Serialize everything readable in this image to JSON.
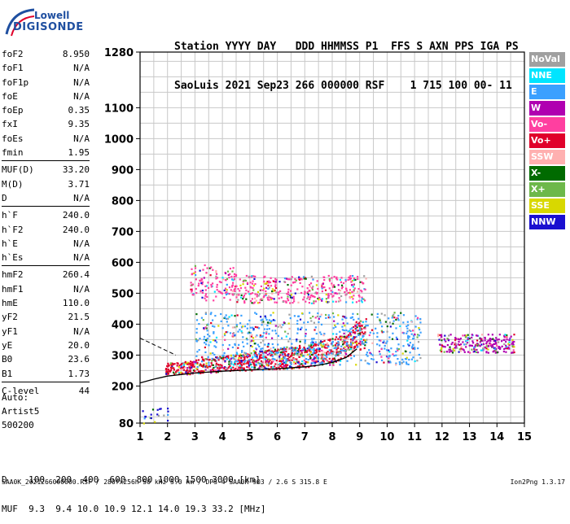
{
  "logo": {
    "line1": "Lowell",
    "line2": "DIGISONDE"
  },
  "header": {
    "row1": "Station YYYY DAY   DDD HHMMSS P1  FFS S AXN PPS IGA PS",
    "row2": "SaoLuis 2021 Sep23 266 000000 RSF    1 715 100 00- 11"
  },
  "params": {
    "group1": [
      {
        "k": "foF2",
        "v": "8.950"
      },
      {
        "k": "foF1",
        "v": "N/A"
      },
      {
        "k": "foF1p",
        "v": "N/A"
      },
      {
        "k": "foE",
        "v": "N/A"
      },
      {
        "k": "foEp",
        "v": "0.35"
      },
      {
        "k": "fxI",
        "v": "9.35"
      },
      {
        "k": "foEs",
        "v": "N/A"
      },
      {
        "k": "fmin",
        "v": "1.95"
      }
    ],
    "group2": [
      {
        "k": "MUF(D)",
        "v": "33.20"
      },
      {
        "k": "M(D)",
        "v": "3.71"
      },
      {
        "k": "D",
        "v": "N/A"
      }
    ],
    "group3": [
      {
        "k": "h`F",
        "v": "240.0"
      },
      {
        "k": "h`F2",
        "v": "240.0"
      },
      {
        "k": "h`E",
        "v": "N/A"
      },
      {
        "k": "h`Es",
        "v": "N/A"
      }
    ],
    "group4": [
      {
        "k": "hmF2",
        "v": "260.4"
      },
      {
        "k": "hmF1",
        "v": "N/A"
      },
      {
        "k": "hmE",
        "v": "110.0"
      },
      {
        "k": "yF2",
        "v": "21.5"
      },
      {
        "k": "yF1",
        "v": "N/A"
      },
      {
        "k": "yE",
        "v": "20.0"
      },
      {
        "k": "B0",
        "v": "23.6"
      },
      {
        "k": "B1",
        "v": "1.73"
      }
    ],
    "group5": [
      {
        "k": "C-level",
        "v": "44"
      }
    ]
  },
  "auto": {
    "line1": "Auto:",
    "line2": "Artist5",
    "line3": "500200"
  },
  "legend": [
    {
      "label": "NoVal",
      "color": "#a0a0a0"
    },
    {
      "label": "NNE",
      "color": "#00e5ff"
    },
    {
      "label": "E",
      "color": "#3aa0ff"
    },
    {
      "label": "W",
      "color": "#b000b0"
    },
    {
      "label": "Vo-",
      "color": "#ff3fa0"
    },
    {
      "label": "Vo+",
      "color": "#e0002a"
    },
    {
      "label": "SSW",
      "color": "#ffb0b0"
    },
    {
      "label": "X-",
      "color": "#006b00"
    },
    {
      "label": "X+",
      "color": "#6db84a"
    },
    {
      "label": "SSE",
      "color": "#d8d800"
    },
    {
      "label": "NNW",
      "color": "#1a0fd0"
    }
  ],
  "bottom": {
    "row1": "D    100  200  400  600  800 1000 1500 3000 [km]",
    "row2": "MUF  9.3  9.4 10.0 10.9 12.1 14.0 19.3 33.2 [MHz]"
  },
  "footer": {
    "left": "SAA0K_2021266000000.RSF / 280fx256h 50 kHz 5.0 km / DPS-4 SAA0K 903 / 2.6 S 315.8 E",
    "right": "Ion2Png 1.3.17"
  },
  "chart_data": {
    "type": "scatter",
    "title": "",
    "xlabel": "",
    "ylabel": "",
    "xlim": [
      1,
      15
    ],
    "ylim": [
      80,
      1280
    ],
    "x_ticks": [
      1,
      2,
      3,
      4,
      5,
      6,
      7,
      8,
      9,
      10,
      11,
      12,
      13,
      14,
      15
    ],
    "y_ticks": [
      80,
      200,
      300,
      400,
      500,
      600,
      700,
      800,
      900,
      1000,
      1100,
      1280
    ],
    "grid": true,
    "legend_position": "right",
    "trace_fit": {
      "name": "",
      "x": [
        1.0,
        1.5,
        2.0,
        3.0,
        4.0,
        5.0,
        6.0,
        7.0,
        7.5,
        8.0,
        8.5,
        8.9
      ],
      "y": [
        210,
        222,
        232,
        242,
        248,
        252,
        256,
        262,
        267,
        276,
        292,
        320
      ]
    },
    "clusters": [
      {
        "name": "F-layer O trace",
        "x_range": [
          1.9,
          9.2
        ],
        "y_range": [
          240,
          330
        ],
        "color": "Vo+"
      },
      {
        "name": "F-layer X trace",
        "x_range": [
          3.0,
          11.2
        ],
        "y_range": [
          270,
          440
        ],
        "color": "E"
      },
      {
        "name": "Second hop",
        "x_range": [
          2.8,
          9.2
        ],
        "y_range": [
          470,
          650
        ],
        "color": "Vo-"
      },
      {
        "name": "Spread F",
        "x_range": [
          11.8,
          14.6
        ],
        "y_range": [
          310,
          370
        ],
        "color": "W"
      },
      {
        "name": "Low E echoes",
        "x_range": [
          1.0,
          2.0
        ],
        "y_range": [
          80,
          130
        ],
        "color": "NNW"
      }
    ]
  }
}
